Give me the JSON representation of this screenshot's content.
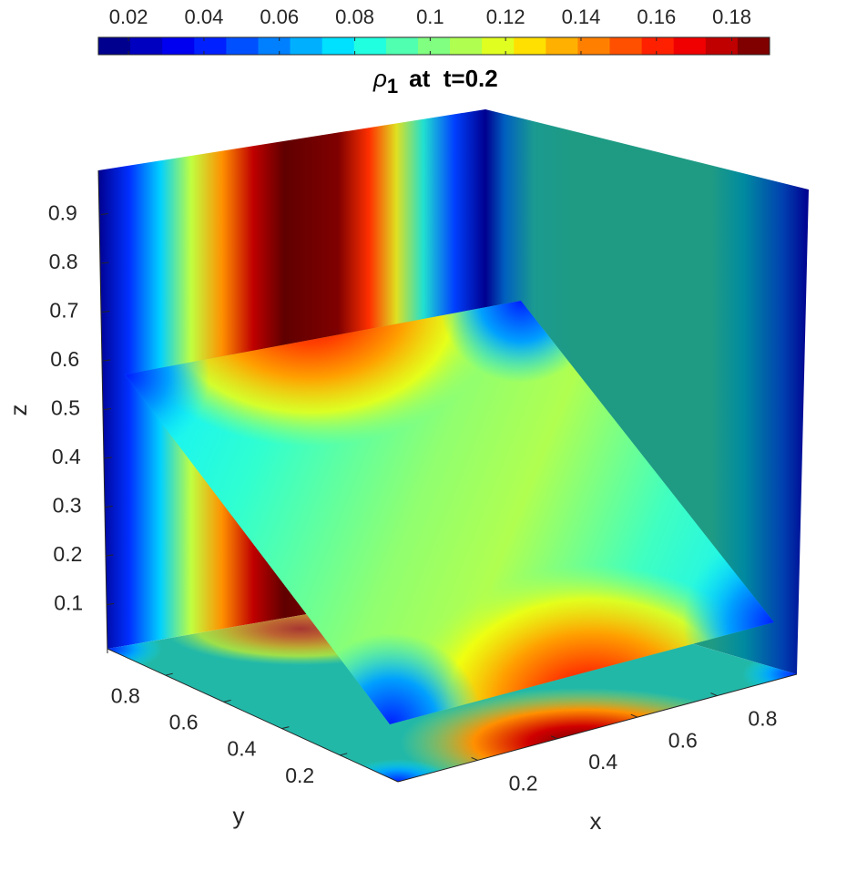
{
  "chart_data": {
    "type": "slice3d",
    "title": {
      "symbol": "ρ",
      "subscript": "1",
      "text": "at  t=0.2"
    },
    "xlabel": "x",
    "ylabel": "y",
    "zlabel": "z",
    "xlim": [
      0,
      1
    ],
    "ylim": [
      0,
      1
    ],
    "zlim": [
      0,
      1
    ],
    "xticks": [
      0.2,
      0.4,
      0.6,
      0.8
    ],
    "yticks": [
      0.2,
      0.4,
      0.6,
      0.8
    ],
    "zticks": [
      0.1,
      0.2,
      0.3,
      0.4,
      0.5,
      0.6,
      0.7,
      0.8,
      0.9
    ],
    "colorbar": {
      "location": "north",
      "clim": [
        0.012,
        0.19
      ],
      "ticks": [
        0.02,
        0.04,
        0.06,
        0.08,
        0.1,
        0.12,
        0.14,
        0.16,
        0.18
      ],
      "colors": [
        "#00008f",
        "#0000c0",
        "#0000f0",
        "#0020ff",
        "#0050ff",
        "#0080ff",
        "#00b0ff",
        "#00e0ff",
        "#20ffe0",
        "#50ffb0",
        "#80ff80",
        "#b0ff50",
        "#e0ff20",
        "#ffe000",
        "#ffb000",
        "#ff8000",
        "#ff5000",
        "#ff2000",
        "#f00000",
        "#c00000",
        "#800000"
      ]
    }
  }
}
